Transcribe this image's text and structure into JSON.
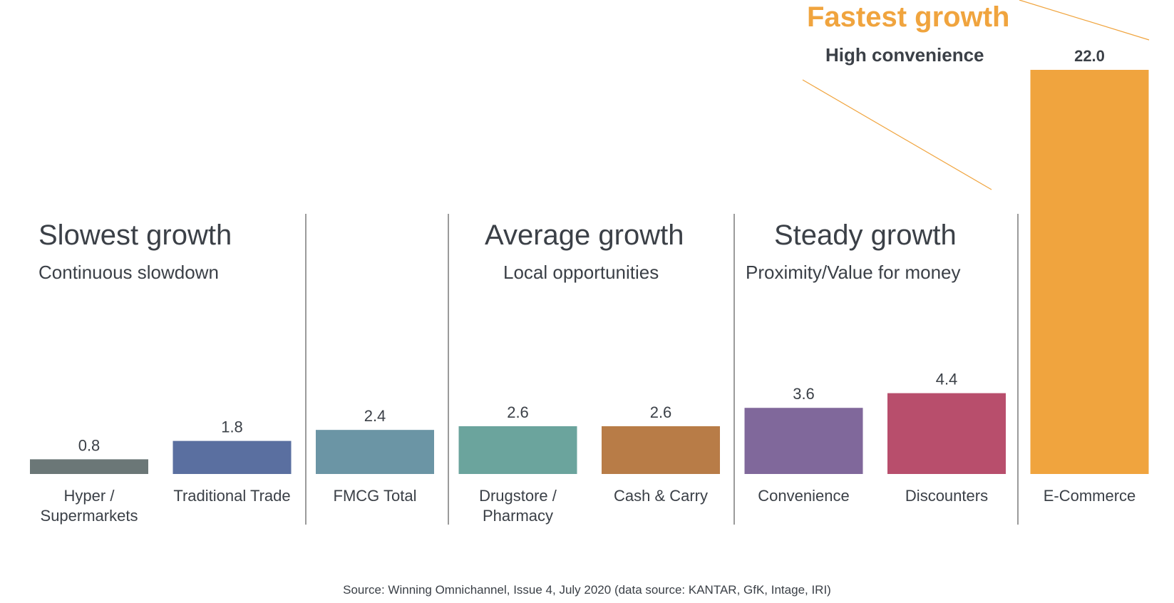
{
  "groups": [
    {
      "title": "Slowest growth",
      "subtitle": "Continuous slowdown"
    },
    {
      "title": "Average growth",
      "subtitle": "Local opportunities"
    },
    {
      "title": "Steady growth",
      "subtitle": "Proximity/Value for money"
    },
    {
      "title": "Fastest growth",
      "subtitle": "High convenience"
    }
  ],
  "source": "Source: Winning Omnichannel, Issue 4, July 2020 (data source: KANTAR, GfK, Intage, IRI)",
  "chart_data": {
    "type": "bar",
    "categories": [
      "Hyper / Supermarkets",
      "Traditional Trade",
      "FMCG Total",
      "Drugstore / Pharmacy",
      "Cash & Carry",
      "Convenience",
      "Discounters",
      "E-Commerce"
    ],
    "category_lines": [
      [
        "Hyper /",
        "Supermarkets"
      ],
      [
        "Traditional Trade"
      ],
      [
        "FMCG Total"
      ],
      [
        "Drugstore /",
        "Pharmacy"
      ],
      [
        "Cash & Carry"
      ],
      [
        "Convenience"
      ],
      [
        "Discounters"
      ],
      [
        "E-Commerce"
      ]
    ],
    "values": [
      0.8,
      1.8,
      2.4,
      2.6,
      2.6,
      3.6,
      4.4,
      22.0
    ],
    "value_labels": [
      "0.8",
      "1.8",
      "2.4",
      "2.6",
      "2.6",
      "3.6",
      "4.4",
      "22.0"
    ],
    "colors": [
      "#6b7777",
      "#5a6fa0",
      "#6b95a5",
      "#6ba49d",
      "#b87c47",
      "#80689b",
      "#b84e6c",
      "#f0a43e"
    ],
    "label_color": "#3b4047",
    "divider_color": "#7a7a7a",
    "accent_line_color": "#f0a43e",
    "grid": false,
    "legend": false
  }
}
